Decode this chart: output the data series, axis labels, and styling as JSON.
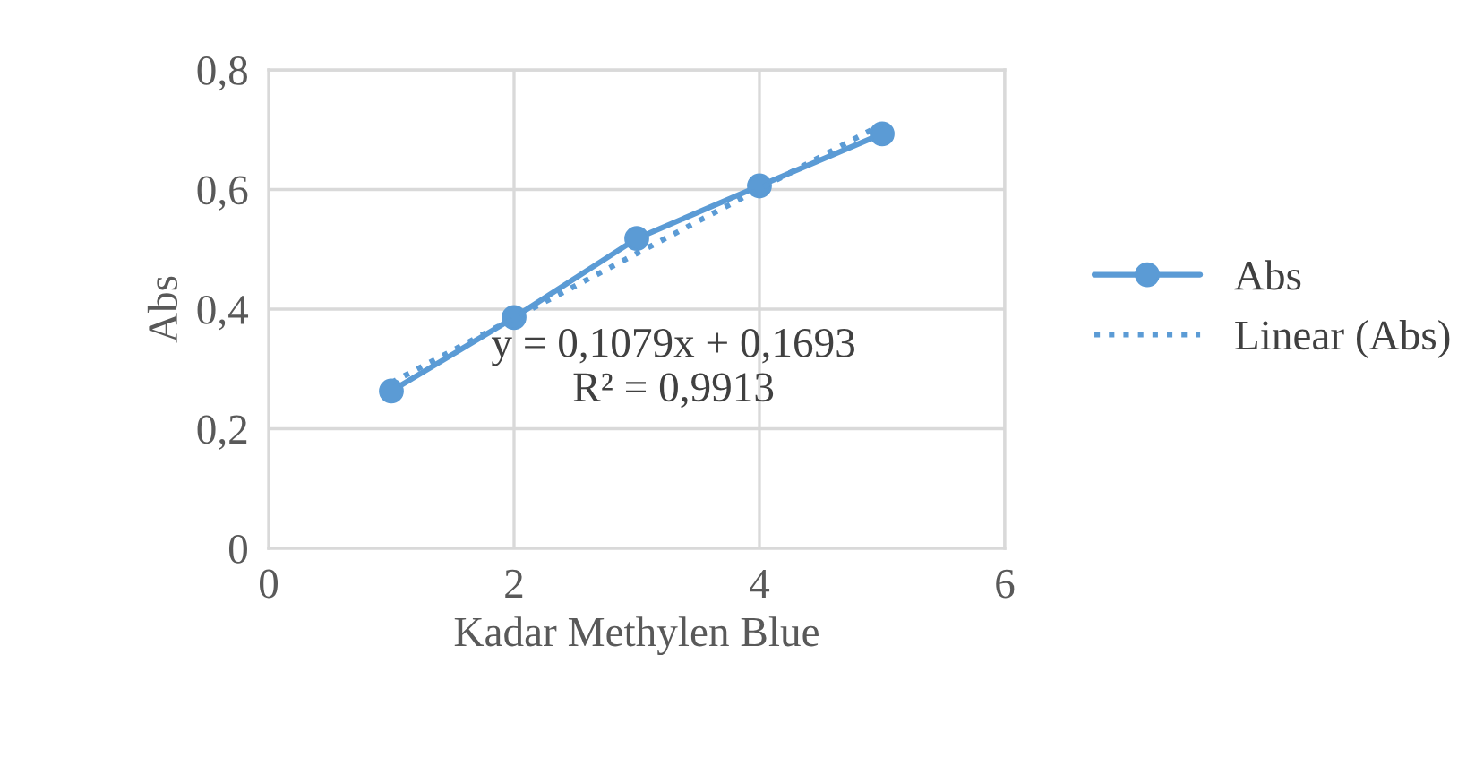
{
  "chart_data": {
    "type": "line",
    "xlabel": "Kadar Methylen Blue",
    "ylabel": "Abs",
    "xlim": [
      0,
      6
    ],
    "xticks": [
      0,
      2,
      4,
      6
    ],
    "ylim": [
      0,
      0.8
    ],
    "yticks": [
      {
        "value": 0,
        "label": "0"
      },
      {
        "value": 0.2,
        "label": "0,2"
      },
      {
        "value": 0.4,
        "label": "0,4"
      },
      {
        "value": 0.6,
        "label": "0,6"
      },
      {
        "value": 0.8,
        "label": "0,8"
      }
    ],
    "grid": true,
    "legend": "right",
    "series": [
      {
        "name": "Abs",
        "color": "#5b9bd5",
        "x": [
          1,
          2,
          3,
          4,
          5
        ],
        "values": [
          0.263,
          0.386,
          0.518,
          0.606,
          0.693
        ],
        "marker": "circle",
        "line_style": "solid"
      },
      {
        "name": "Linear (Abs)",
        "color": "#5b9bd5",
        "x": [
          1,
          5
        ],
        "values": [
          0.277,
          0.709
        ],
        "marker": "none",
        "line_style": "dotted"
      }
    ],
    "annotations": [
      "y = 0,1079x + 0,1693\nR² = 0,9913"
    ]
  }
}
